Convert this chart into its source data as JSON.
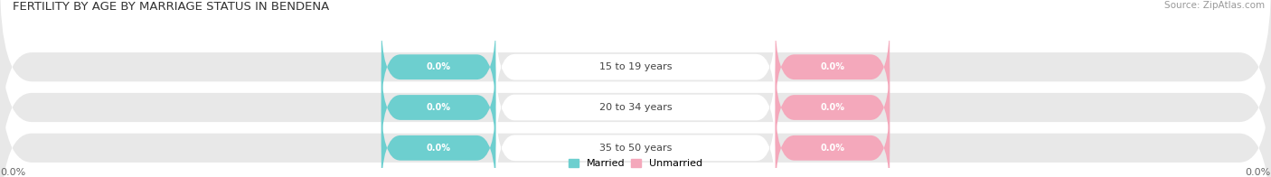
{
  "title": "FERTILITY BY AGE BY MARRIAGE STATUS IN BENDENA",
  "source": "Source: ZipAtlas.com",
  "age_groups": [
    "15 to 19 years",
    "20 to 34 years",
    "35 to 50 years"
  ],
  "married_values": [
    "0.0%",
    "0.0%",
    "0.0%"
  ],
  "unmarried_values": [
    "0.0%",
    "0.0%",
    "0.0%"
  ],
  "married_color": "#6DCFCF",
  "unmarried_color": "#F4A8BB",
  "bar_bg_color": "#E8E8E8",
  "center_bg_color": "#FFFFFF",
  "title_fontsize": 9.5,
  "source_fontsize": 7.5,
  "legend_married": "Married",
  "legend_unmarried": "Unmarried",
  "bg_color": "#FFFFFF",
  "center_label_color": "#444444",
  "value_label_color": "#FFFFFF",
  "x_left_label": "0.0%",
  "x_right_label": "0.0%"
}
